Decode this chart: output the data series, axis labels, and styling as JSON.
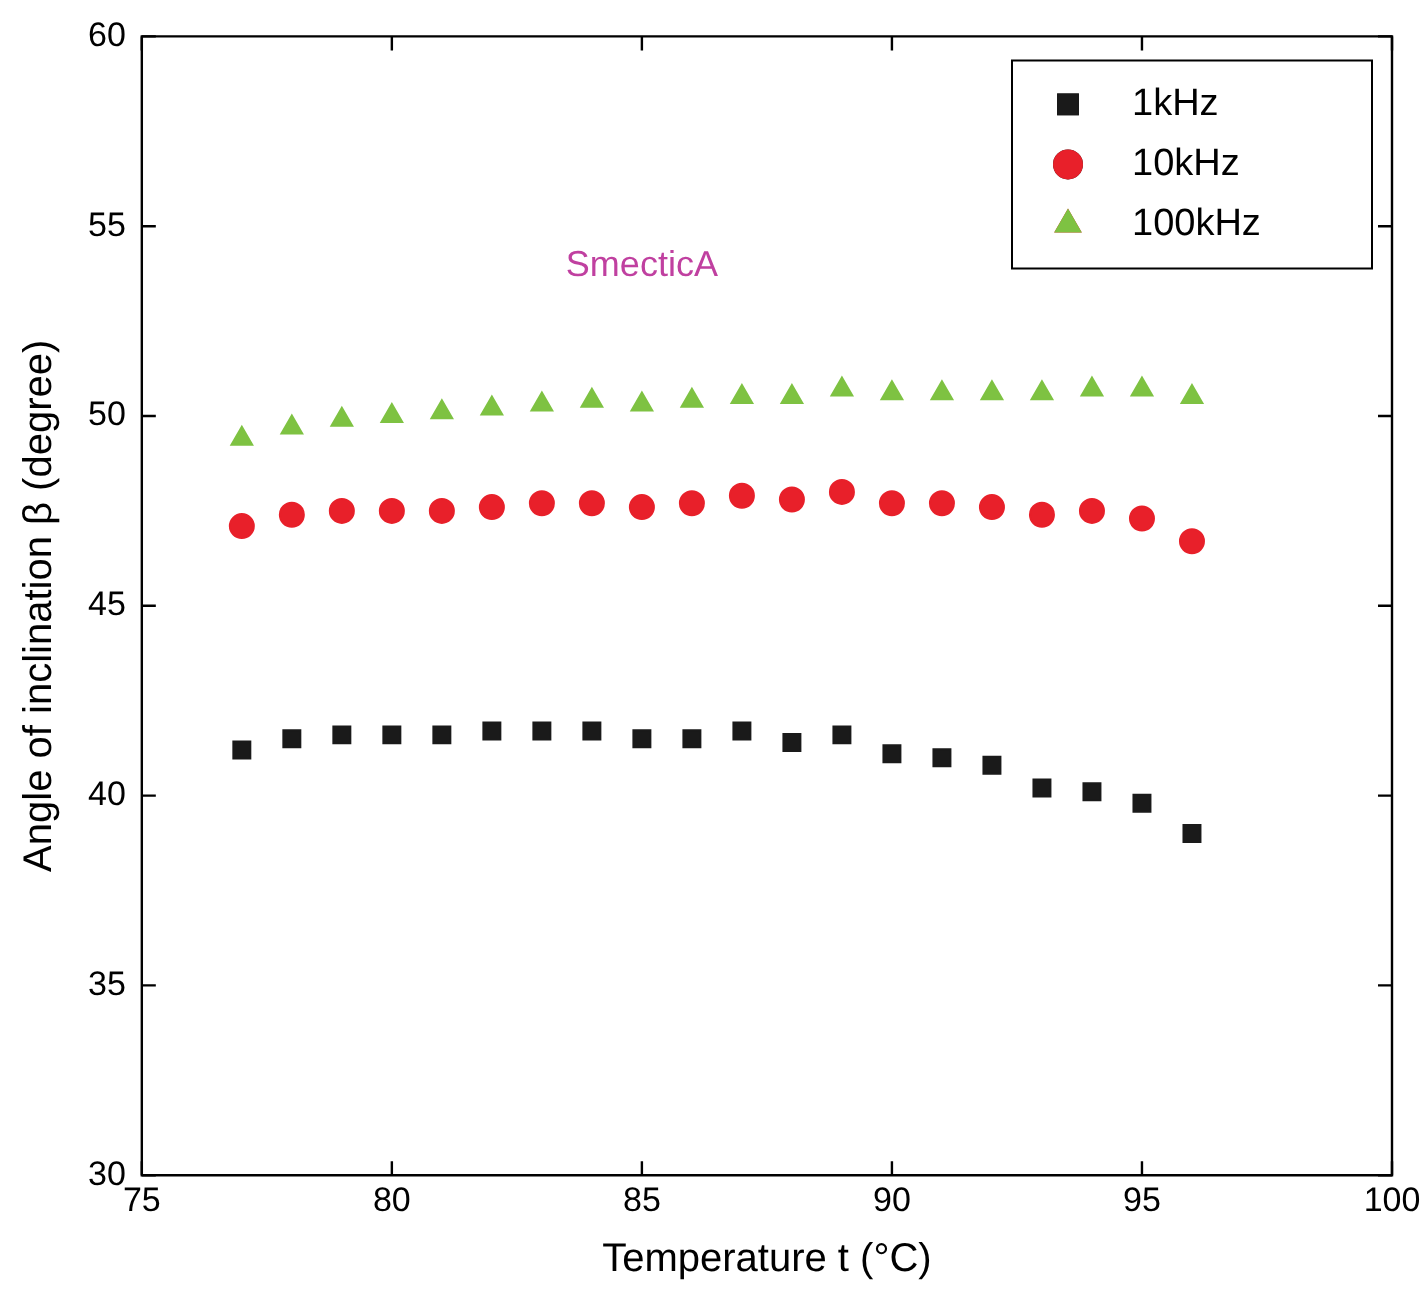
{
  "chart_data": {
    "type": "scatter",
    "xlabel": "Temperature t (°C)",
    "ylabel": "Angle of inclination β (degree)",
    "annotations": [
      "SmecticA"
    ],
    "x": [
      77,
      78,
      79,
      80,
      81,
      82,
      83,
      84,
      85,
      86,
      87,
      88,
      89,
      90,
      91,
      92,
      93,
      94,
      95,
      96
    ],
    "xlim": [
      75,
      100
    ],
    "xticks": [
      75,
      80,
      85,
      90,
      95,
      100
    ],
    "ylim": [
      30,
      60
    ],
    "yticks": [
      30,
      35,
      40,
      45,
      50,
      55,
      60
    ],
    "grid": false,
    "legend": "top right",
    "series": [
      {
        "name": "1kHz",
        "color": "#1a1a1a",
        "marker": "square",
        "values": [
          41.2,
          41.5,
          41.6,
          41.6,
          41.6,
          41.7,
          41.7,
          41.7,
          41.5,
          41.5,
          41.7,
          41.4,
          41.6,
          41.1,
          41.0,
          40.8,
          40.2,
          40.1,
          39.8,
          39.0
        ]
      },
      {
        "name": "10kHz",
        "color": "#e8202a",
        "marker": "circle",
        "values": [
          47.1,
          47.4,
          47.5,
          47.5,
          47.5,
          47.6,
          47.7,
          47.7,
          47.6,
          47.7,
          47.9,
          47.8,
          48.0,
          47.7,
          47.7,
          47.6,
          47.4,
          47.5,
          47.3,
          46.7
        ]
      },
      {
        "name": "100kHz",
        "color": "#7ec242",
        "marker": "triangle",
        "values": [
          49.4,
          49.7,
          49.9,
          50.0,
          50.1,
          50.2,
          50.3,
          50.4,
          50.3,
          50.4,
          50.5,
          50.5,
          50.7,
          50.6,
          50.6,
          50.6,
          50.6,
          50.7,
          50.7,
          50.5
        ]
      }
    ]
  }
}
